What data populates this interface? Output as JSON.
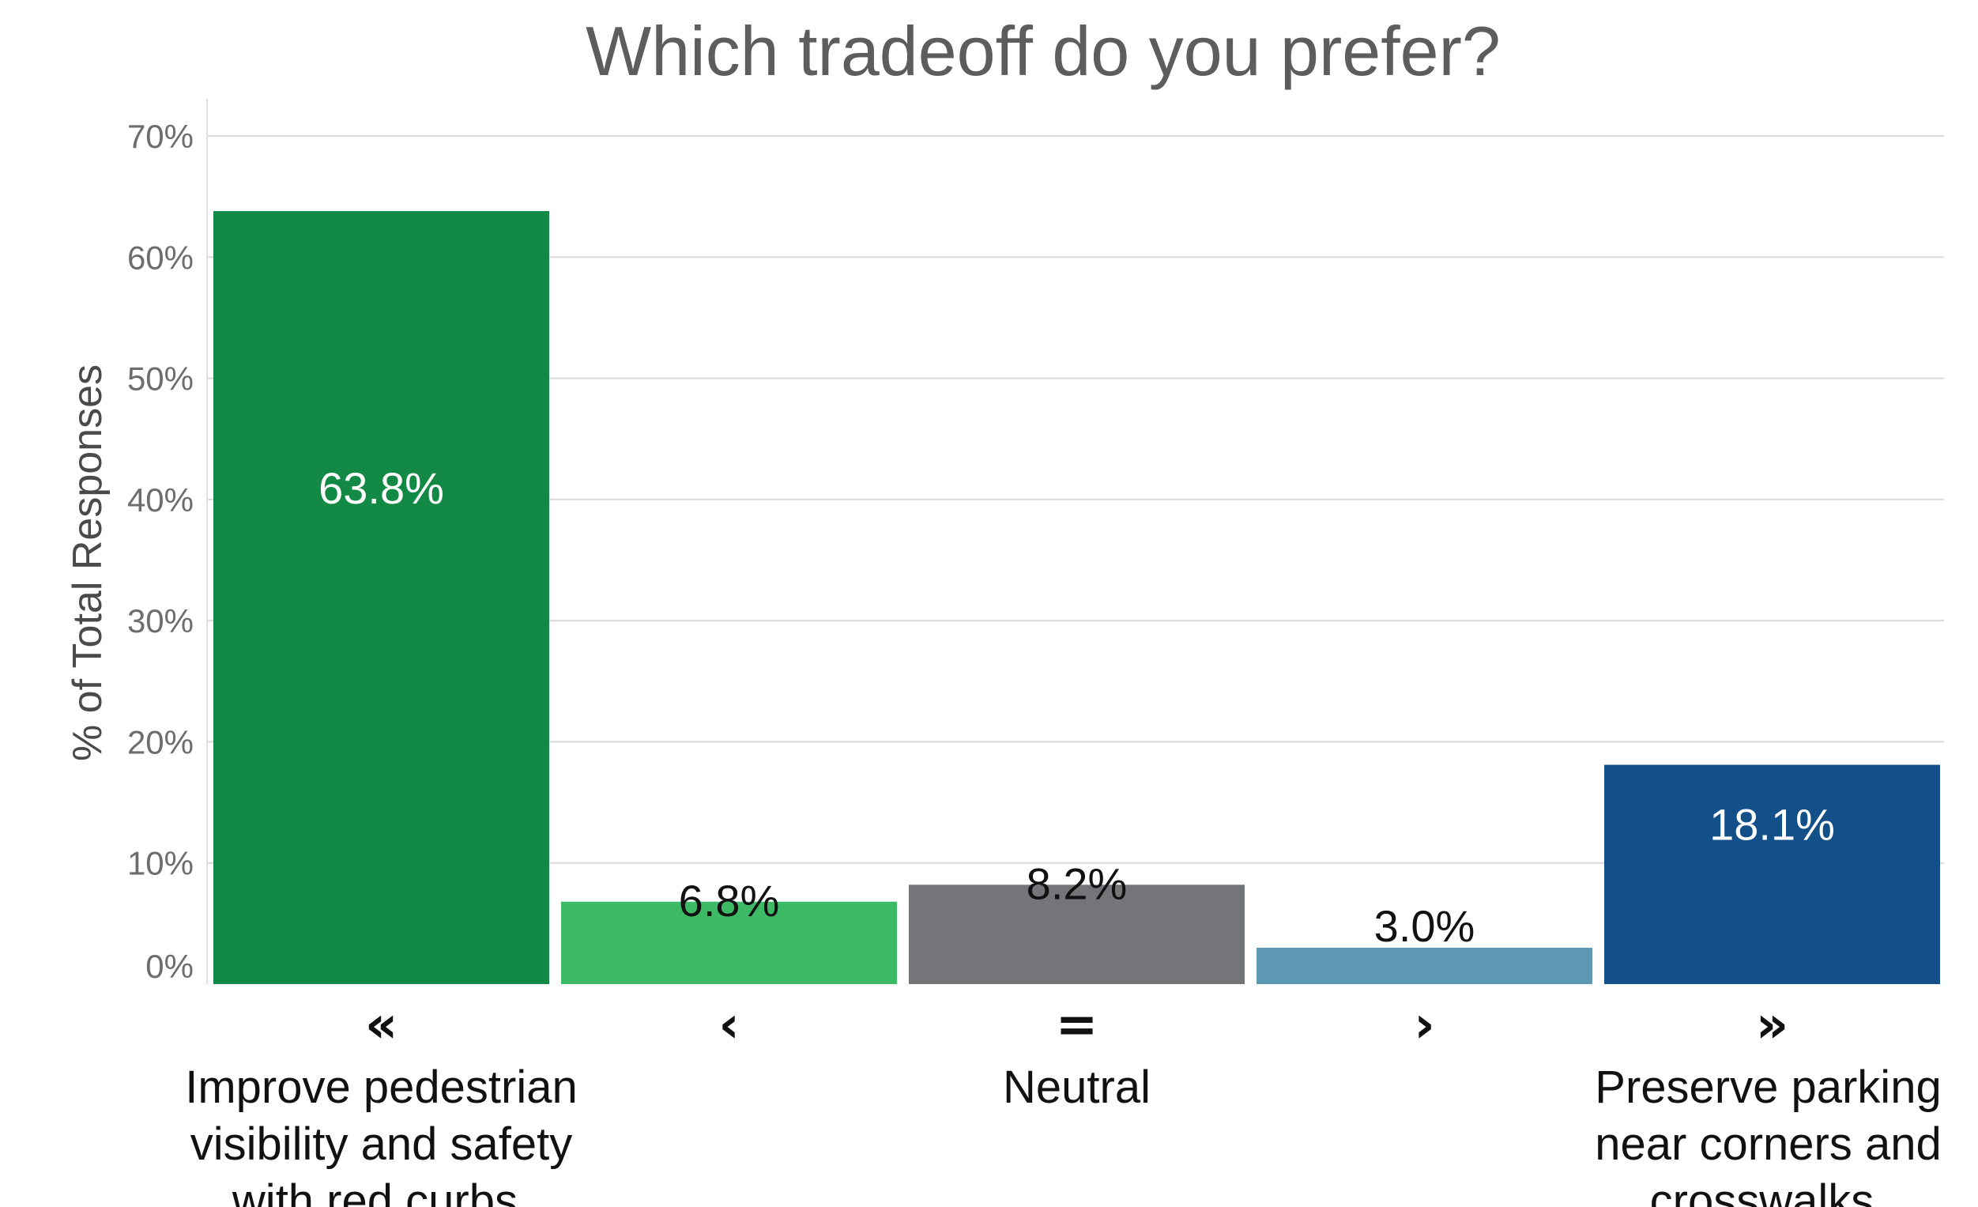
{
  "chart_data": {
    "type": "bar",
    "title": "Which tradeoff do you prefer?",
    "ylabel": "% of Total Responses",
    "xlabel": "",
    "ylim": [
      0,
      70
    ],
    "y_ticks": [
      "70%",
      "60%",
      "50%",
      "40%",
      "30%",
      "20%",
      "10%",
      "0%"
    ],
    "y_tick_values": [
      70,
      60,
      50,
      40,
      30,
      20,
      10,
      0
    ],
    "grid": true,
    "categories": [
      "«",
      "‹",
      "=",
      "›",
      "»"
    ],
    "values": [
      63.8,
      6.8,
      8.2,
      3.0,
      18.1
    ],
    "data_labels": [
      "63.8%",
      "6.8%",
      "8.2%",
      "3.0%",
      "18.1%"
    ],
    "colors": [
      "#128a45",
      "#3dba66",
      "#737578",
      "#5d98b5",
      "#134f89"
    ],
    "label_colors": [
      "#ffffff",
      "#111111",
      "#111111",
      "#111111",
      "#ffffff"
    ],
    "category_descriptions": [
      [
        "Improve pedestrian",
        "visibility and safety",
        "with red curbs."
      ],
      [],
      [
        "Neutral"
      ],
      [],
      [
        "Preserve parking",
        "near corners and",
        "crosswalks."
      ]
    ]
  }
}
